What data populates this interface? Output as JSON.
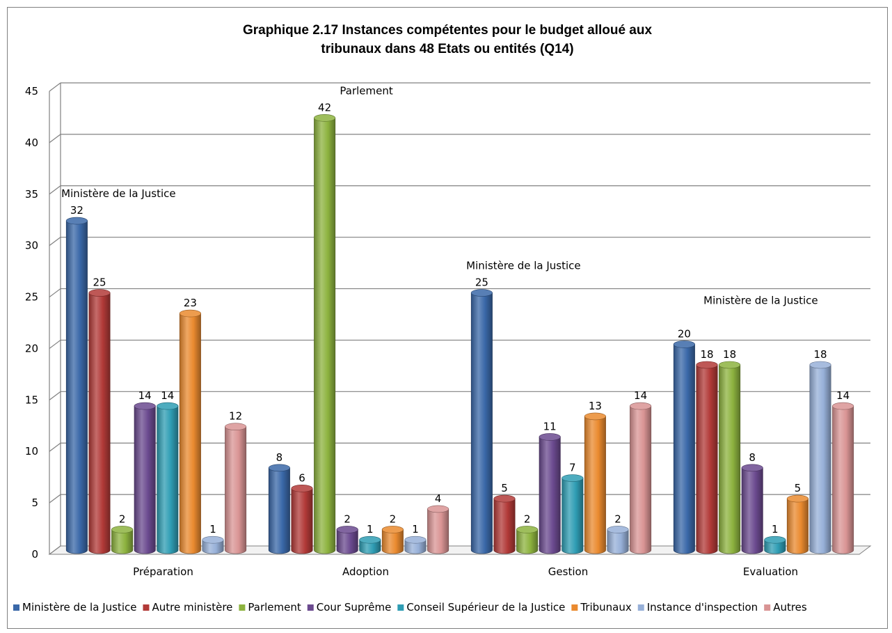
{
  "chart_data": {
    "type": "bar",
    "title_lines": [
      "Graphique 2.17 Instances compétentes pour le budget  alloué aux",
      "tribunaux dans 48 Etats ou entités  (Q14)"
    ],
    "categories": [
      "Préparation",
      "Adoption",
      "Gestion",
      "Evaluation"
    ],
    "series": [
      {
        "name": "Ministère de la Justice",
        "color": "#3a68a8",
        "values": [
          32,
          8,
          25,
          20
        ]
      },
      {
        "name": "Autre ministère",
        "color": "#b23a38",
        "values": [
          25,
          6,
          5,
          18
        ]
      },
      {
        "name": "Parlement",
        "color": "#8db33f",
        "values": [
          2,
          42,
          2,
          18
        ]
      },
      {
        "name": "Cour Suprême",
        "color": "#6b4a8f",
        "values": [
          14,
          2,
          11,
          8
        ]
      },
      {
        "name": "Conseil Supérieur de la Justice",
        "color": "#2f9db4",
        "values": [
          14,
          1,
          7,
          1
        ]
      },
      {
        "name": "Tribunaux",
        "color": "#ea8a2f",
        "values": [
          23,
          2,
          13,
          5
        ]
      },
      {
        "name": "Instance d'inspection",
        "color": "#97b0d8",
        "values": [
          1,
          1,
          2,
          18
        ]
      },
      {
        "name": "Autres",
        "color": "#d99494",
        "values": [
          12,
          4,
          14,
          14
        ]
      }
    ],
    "ylim": [
      0,
      45
    ],
    "yticks": [
      0,
      5,
      10,
      15,
      20,
      25,
      30,
      35,
      40,
      45
    ],
    "grid": true,
    "legend_position": "bottom",
    "annotations": [
      {
        "category": "Préparation",
        "text": "Ministère de la Justice"
      },
      {
        "category": "Adoption",
        "text": "Parlement"
      },
      {
        "category": "Gestion",
        "text": "Ministère de la Justice"
      },
      {
        "category": "Evaluation",
        "text": "Ministère de la Justice"
      }
    ]
  }
}
